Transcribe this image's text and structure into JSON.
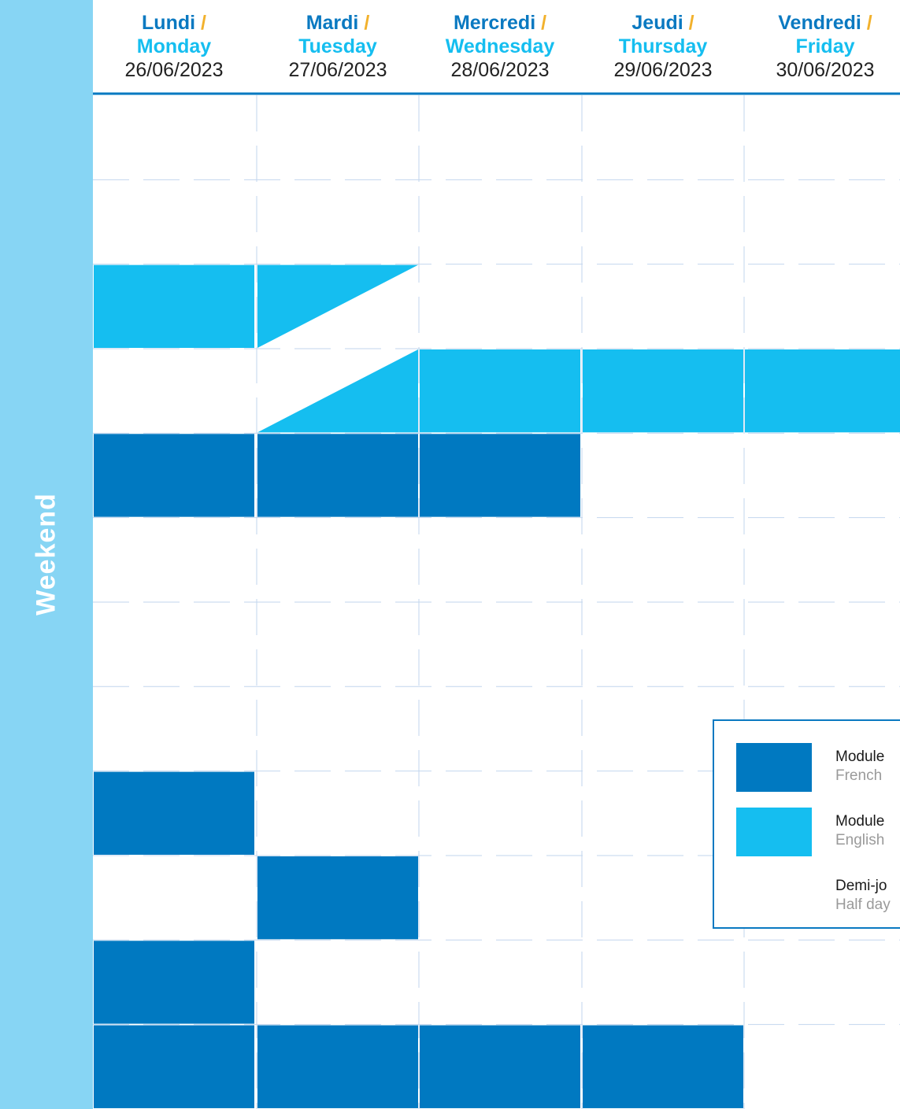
{
  "weekend_label": "Weekend",
  "days": [
    {
      "fr": "Lundi",
      "en": "Monday",
      "date": "26/06/2023"
    },
    {
      "fr": "Mardi",
      "en": "Tuesday",
      "date": "27/06/2023"
    },
    {
      "fr": "Mercredi",
      "en": "Wednesday",
      "date": "28/06/2023"
    },
    {
      "fr": "Jeudi",
      "en": "Thursday",
      "date": "29/06/2023"
    },
    {
      "fr": "Vendredi",
      "en": "Friday",
      "date": "30/06/2023"
    }
  ],
  "separator": "/",
  "rows": 12,
  "blocks": [
    {
      "type": "english",
      "day": 0,
      "row": 2
    },
    {
      "type": "english",
      "day": 2,
      "row": 3
    },
    {
      "type": "english",
      "day": 3,
      "row": 3
    },
    {
      "type": "english",
      "day": 4,
      "row": 3
    },
    {
      "type": "french",
      "day": 0,
      "row": 4
    },
    {
      "type": "french",
      "day": 1,
      "row": 4
    },
    {
      "type": "french",
      "day": 2,
      "row": 4
    },
    {
      "type": "french",
      "day": 0,
      "row": 8
    },
    {
      "type": "french",
      "day": 1,
      "row": 9
    },
    {
      "type": "french",
      "day": 0,
      "row": 10
    },
    {
      "type": "french",
      "day": 0,
      "row": 11
    },
    {
      "type": "french",
      "day": 1,
      "row": 11
    },
    {
      "type": "french",
      "day": 2,
      "row": 11
    },
    {
      "type": "french",
      "day": 3,
      "row": 11
    }
  ],
  "half_days": [
    {
      "type": "english",
      "day": 1,
      "row": 2,
      "shape": "top"
    },
    {
      "type": "english",
      "day": 1,
      "row": 3,
      "shape": "bottom"
    }
  ],
  "legend": [
    {
      "key": "french",
      "fr": "Module",
      "en": "French"
    },
    {
      "key": "english",
      "fr": "Module",
      "en": "English"
    },
    {
      "key": "half",
      "fr": "Demi-jo",
      "en": "Half day"
    }
  ],
  "colors": {
    "french": "#0079c1",
    "english": "#15bef0",
    "weekend": "#87d5f4",
    "day_fr_text": "#0a79c1",
    "day_en_text": "#15bef0",
    "separator": "#f2b12c",
    "header_line": "#0079c1",
    "grid": "#c2d6ee",
    "half_day_icon": "#231f20"
  }
}
